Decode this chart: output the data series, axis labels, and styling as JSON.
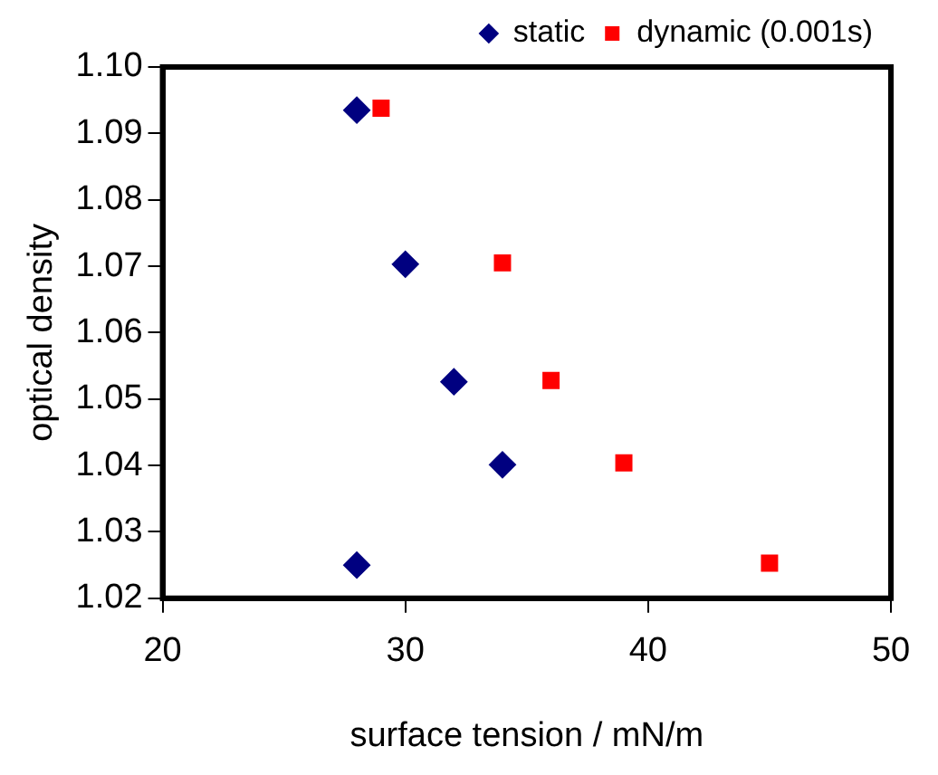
{
  "chart_data": {
    "type": "scatter",
    "xlabel": "surface tension / mN/m",
    "ylabel": "optical density",
    "xlim": [
      20,
      50
    ],
    "xticks": [
      20,
      30,
      40,
      50
    ],
    "ylim": [
      1.02,
      1.1
    ],
    "yticks": [
      1.02,
      1.03,
      1.04,
      1.05,
      1.06,
      1.07,
      1.08,
      1.09,
      {
        "value": 1.1,
        "label": "1.10"
      }
    ],
    "grid": false,
    "legend": "top right",
    "series": [
      {
        "name": "static",
        "color": "#000080",
        "marker": "diamond",
        "x": [
          28,
          30,
          32,
          34,
          28
        ],
        "values": [
          1.0935,
          1.0703,
          1.0526,
          1.0401,
          1.025
        ]
      },
      {
        "name": "dynamic (0.001s)",
        "color": "#ff0000",
        "marker": "square",
        "x": [
          29,
          34,
          36,
          39,
          45
        ],
        "values": [
          1.0938,
          1.0705,
          1.0528,
          1.0404,
          1.0253
        ]
      }
    ]
  }
}
